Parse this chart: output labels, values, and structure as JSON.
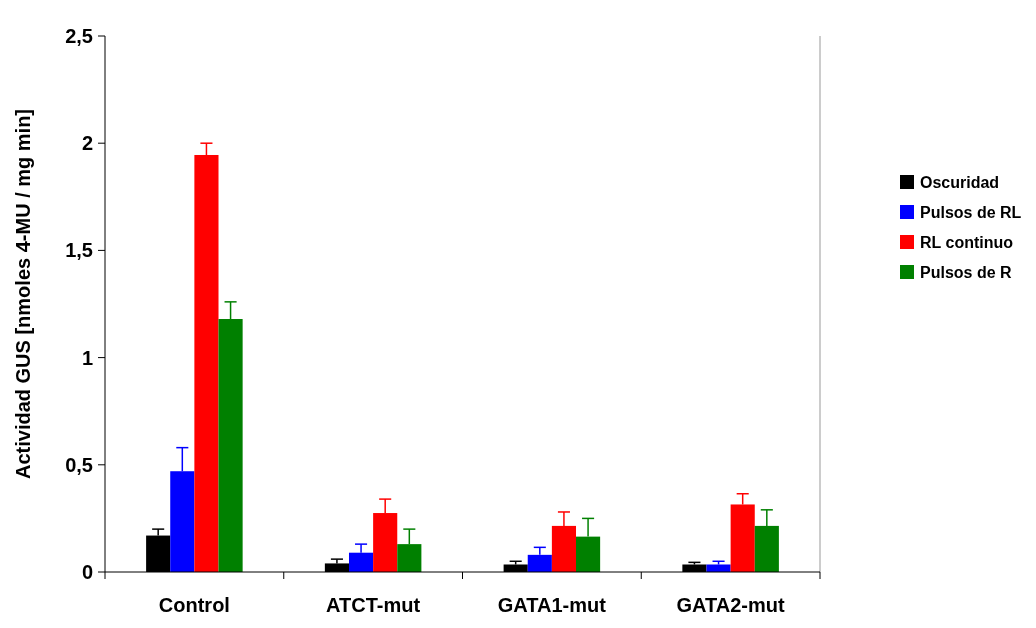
{
  "chart_data": {
    "type": "bar",
    "ylabel": "Actividad GUS [nmoles 4-MU / mg min]",
    "categories": [
      "Control",
      "ATCT-mut",
      "GATA1-mut",
      "GATA2-mut"
    ],
    "series": [
      {
        "name": "Oscuridad",
        "color": "#000000",
        "values": [
          0.17,
          0.04,
          0.035,
          0.035
        ],
        "errors": [
          [
            0.17,
            0.2
          ],
          [
            0.04,
            0.06
          ],
          [
            0.035,
            0.05
          ],
          [
            0.035,
            0.045
          ]
        ]
      },
      {
        "name": "Pulsos de RL",
        "color": "#0000ff",
        "values": [
          0.47,
          0.09,
          0.08,
          0.035
        ],
        "errors": [
          [
            0.47,
            0.58
          ],
          [
            0.09,
            0.13
          ],
          [
            0.08,
            0.115
          ],
          [
            0.035,
            0.05
          ]
        ]
      },
      {
        "name": "RL continuo",
        "color": "#ff0000",
        "values": [
          1.945,
          0.275,
          0.215,
          0.315
        ],
        "errors": [
          [
            1.945,
            2.0
          ],
          [
            0.275,
            0.34
          ],
          [
            0.215,
            0.28
          ],
          [
            0.315,
            0.365
          ]
        ]
      },
      {
        "name": "Pulsos de R",
        "color": "#008000",
        "values": [
          1.18,
          0.13,
          0.165,
          0.215
        ],
        "errors": [
          [
            1.18,
            1.26
          ],
          [
            0.13,
            0.2
          ],
          [
            0.165,
            0.25
          ],
          [
            0.215,
            0.29
          ]
        ]
      }
    ],
    "ylim": [
      0,
      2.5
    ],
    "yticks": [
      0,
      {
        "value": 0.5,
        "label": "0,5"
      },
      1,
      {
        "value": 1.5,
        "label": "1,5"
      },
      2,
      {
        "value": 2.5,
        "label": "2,5"
      }
    ],
    "legend": "right"
  }
}
